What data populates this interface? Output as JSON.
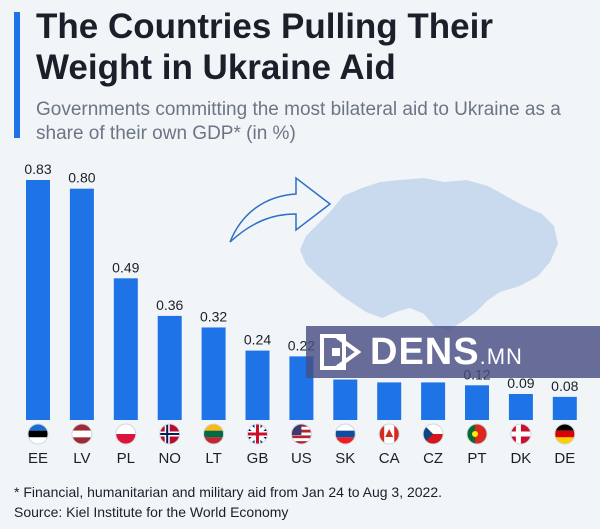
{
  "header": {
    "title": "The Countries Pulling Their Weight in Ukraine Aid",
    "subtitle": "Governments committing the most bilateral aid to Ukraine as a share of their own GDP* (in %)"
  },
  "footer": {
    "footnote": "* Financial, humanitarian and military aid from Jan 24 to Aug 3, 2022.",
    "source": "Source: Kiel Institute for the World Economy"
  },
  "watermark": {
    "brand": "DENS",
    "suffix": ".MN"
  },
  "colors": {
    "bar": "#1e73e6",
    "map": "#c9d9ee",
    "accent": "#1e73e6",
    "background": "#f1f5f8"
  },
  "icons": [
    "ukraine-map-icon",
    "curved-arrow-icon",
    "flag-icons"
  ],
  "chart_data": {
    "type": "bar",
    "categories": [
      "EE",
      "LV",
      "PL",
      "NO",
      "LT",
      "GB",
      "US",
      "SK",
      "CA",
      "CZ",
      "PT",
      "DK",
      "DE"
    ],
    "values": [
      0.83,
      0.8,
      0.49,
      0.36,
      0.32,
      0.24,
      0.22,
      0.14,
      0.13,
      0.13,
      0.12,
      0.09,
      0.08
    ],
    "value_labels": [
      "0.83",
      "0.80",
      "0.49",
      "0.36",
      "0.32",
      "0.24",
      "0.22",
      "",
      "",
      "",
      "0.12",
      "0.09",
      "0.08"
    ],
    "title": "The Countries Pulling Their Weight in Ukraine Aid",
    "xlabel": "",
    "ylabel": "",
    "ylim": [
      0,
      0.9
    ],
    "grid": false
  }
}
